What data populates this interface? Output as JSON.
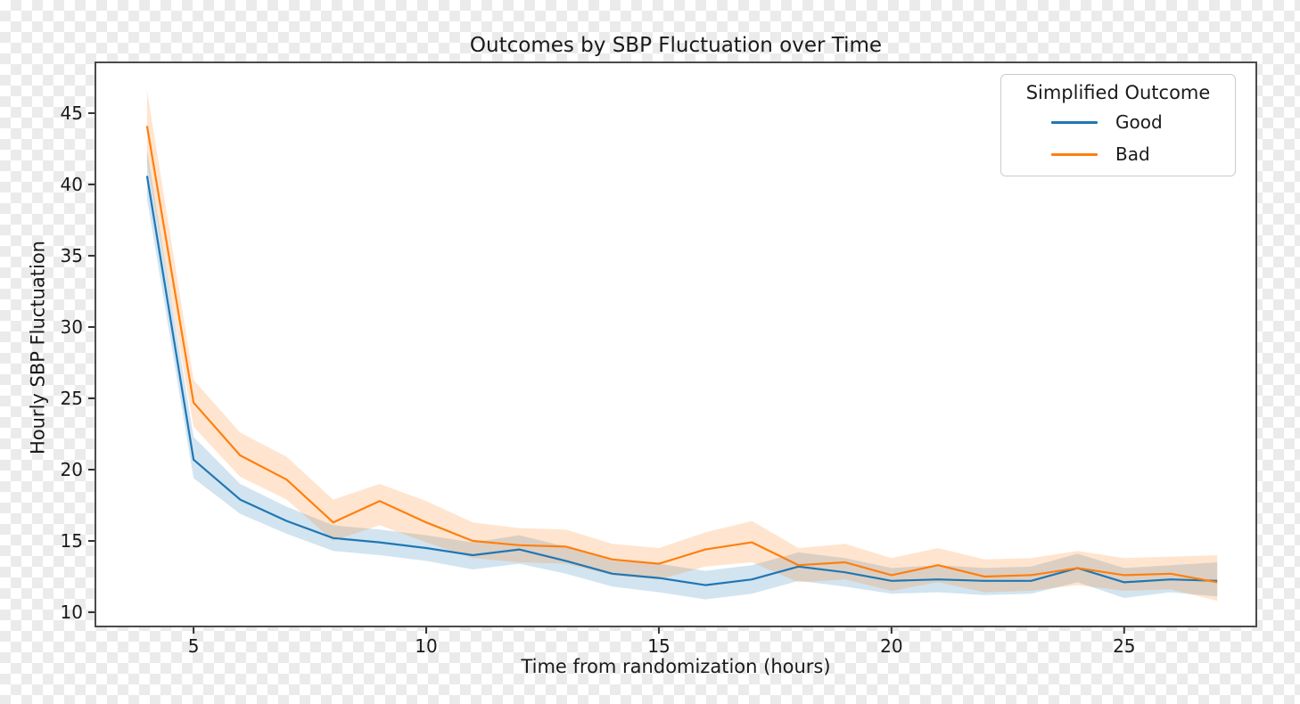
{
  "chart_data": {
    "type": "line",
    "title": "Outcomes by SBP Fluctuation over Time",
    "xlabel": "Time from randomization (hours)",
    "ylabel": "Hourly SBP Fluctuation",
    "grid": false,
    "xlim": [
      2.89,
      27.84
    ],
    "ylim": [
      9.0,
      48.56
    ],
    "x_ticks": [
      5,
      10,
      15,
      20,
      25
    ],
    "y_ticks": [
      10,
      15,
      20,
      25,
      30,
      35,
      40,
      45
    ],
    "x": [
      4,
      5,
      6,
      7,
      8,
      9,
      10,
      11,
      12,
      13,
      14,
      15,
      16,
      17,
      18,
      19,
      20,
      21,
      22,
      23,
      24,
      25,
      26,
      27
    ],
    "series": [
      {
        "name": "Good",
        "color": "#1f77b4",
        "band_opacity": 0.2,
        "values": [
          40.6,
          20.7,
          17.9,
          16.4,
          15.2,
          14.9,
          14.5,
          14.0,
          14.4,
          13.6,
          12.7,
          12.4,
          11.9,
          12.3,
          13.2,
          12.8,
          12.2,
          12.3,
          12.2,
          12.2,
          13.1,
          12.1,
          12.3,
          12.2
        ],
        "band_low": [
          39.0,
          19.4,
          16.9,
          15.5,
          14.3,
          14.0,
          13.6,
          13.0,
          13.4,
          12.7,
          11.8,
          11.4,
          10.9,
          11.3,
          12.2,
          11.8,
          11.3,
          11.4,
          11.2,
          11.3,
          12.1,
          11.0,
          11.4,
          11.1
        ],
        "band_high": [
          42.4,
          22.3,
          19.0,
          17.4,
          16.1,
          15.8,
          15.4,
          14.9,
          15.4,
          14.6,
          13.6,
          13.4,
          12.9,
          13.3,
          14.2,
          13.8,
          13.1,
          13.3,
          13.1,
          13.2,
          14.1,
          13.1,
          13.3,
          13.5
        ]
      },
      {
        "name": "Bad",
        "color": "#ff7f0e",
        "band_opacity": 0.2,
        "values": [
          44.1,
          24.7,
          21.0,
          19.3,
          16.3,
          17.8,
          16.3,
          15.0,
          14.7,
          14.6,
          13.7,
          13.4,
          14.4,
          14.9,
          13.3,
          13.5,
          12.6,
          13.3,
          12.5,
          12.6,
          13.1,
          12.6,
          12.7,
          12.1
        ],
        "band_low": [
          41.6,
          23.0,
          19.5,
          17.9,
          15.0,
          16.1,
          14.9,
          13.8,
          13.5,
          13.4,
          12.6,
          12.3,
          13.2,
          13.5,
          12.1,
          12.3,
          11.5,
          12.1,
          11.4,
          11.5,
          11.9,
          11.5,
          11.6,
          10.8
        ],
        "band_high": [
          46.6,
          26.3,
          22.6,
          20.9,
          17.9,
          19.0,
          17.8,
          16.3,
          15.9,
          15.8,
          14.8,
          14.5,
          15.6,
          16.4,
          14.5,
          14.8,
          13.8,
          14.5,
          13.7,
          13.8,
          14.3,
          13.8,
          13.9,
          14.0
        ]
      }
    ],
    "legend": {
      "title": "Simplified Outcome",
      "position": "upper right",
      "entries": [
        "Good",
        "Bad"
      ]
    }
  },
  "style": {
    "axes_bg": "#ffffff",
    "spine_color": "#4a4a4a",
    "tick_color": "#333333",
    "checker_light": "#ffffff",
    "checker_dark": "#ebebeb"
  }
}
